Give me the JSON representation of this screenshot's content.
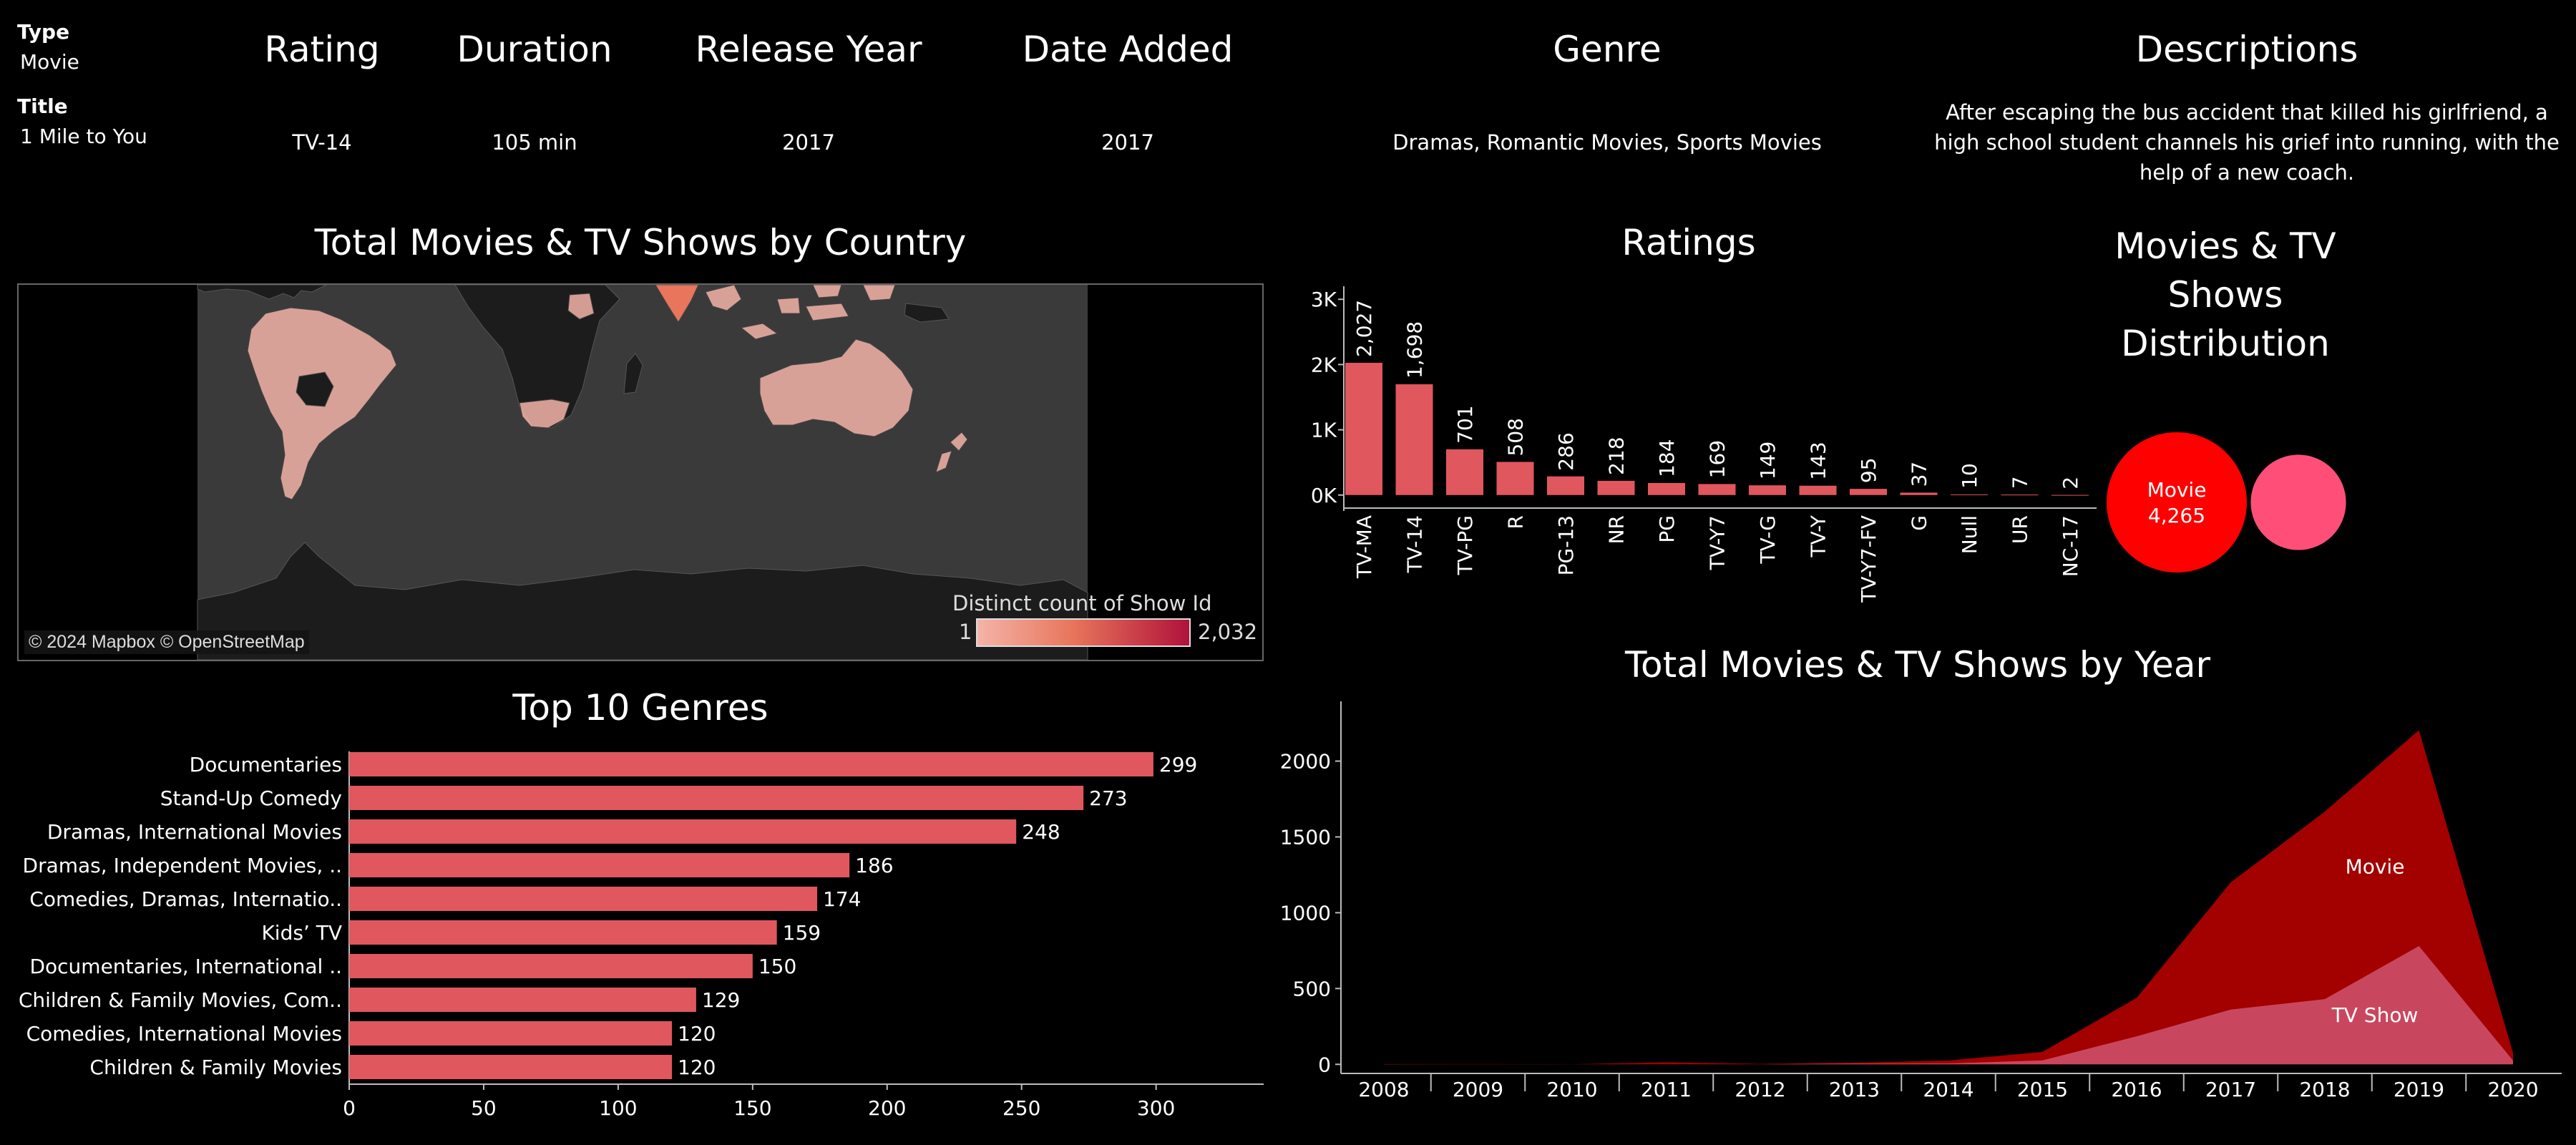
{
  "header": {
    "type_label": "Type",
    "type_value": "Movie",
    "title_label": "Title",
    "title_value": "1 Mile to You",
    "rating_header": "Rating",
    "rating_value": "TV-14",
    "duration_header": "Duration",
    "duration_value": "105 min",
    "release_header": "Release Year",
    "release_value": "2017",
    "date_added_header": "Date Added",
    "date_added_value": "2017",
    "genre_header": "Genre",
    "genre_value": "Dramas, Romantic Movies, Sports Movies",
    "desc_header": "Descriptions",
    "desc_line1": "After escaping the bus accident that killed his girlfriend, a",
    "desc_line2": "high school student channels his grief into running, with the",
    "desc_line3": "help of a new coach."
  },
  "map": {
    "title": "Total Movies & TV Shows by Country",
    "credit": "© 2024 Mapbox © OpenStreetMap",
    "legend_title": "Distinct count of Show Id",
    "legend_min": "1",
    "legend_max": "2,032",
    "ocean_color": "#3a3a3a",
    "land_color": "#1c1c1c",
    "low_color": "#f4b4a8",
    "high_color": "#b0123a"
  },
  "colors": {
    "bar": "#e0575e",
    "movie_area": "#a30000",
    "tv_area": "#d0536e",
    "movie_bubble": "#ff0000",
    "tv_bubble": "#ff4f79"
  },
  "chart_data": [
    {
      "id": "ratings",
      "type": "bar",
      "title": "Ratings",
      "categories": [
        "TV-MA",
        "TV-14",
        "TV-PG",
        "R",
        "PG-13",
        "NR",
        "PG",
        "TV-Y7",
        "TV-G",
        "TV-Y",
        "TV-Y7-FV",
        "G",
        "Null",
        "UR",
        "NC-17"
      ],
      "values": [
        2027,
        1698,
        701,
        508,
        286,
        218,
        184,
        169,
        149,
        143,
        95,
        37,
        10,
        7,
        2
      ],
      "value_labels": [
        "2,027",
        "1,698",
        "701",
        "508",
        "286",
        "218",
        "184",
        "169",
        "149",
        "143",
        "95",
        "37",
        "10",
        "7",
        "2"
      ],
      "yticks": [
        0,
        1000,
        2000,
        3000
      ],
      "ytick_labels": [
        "0K",
        "1K",
        "2K",
        "3K"
      ],
      "ylim": [
        -200,
        3200
      ]
    },
    {
      "id": "distribution",
      "type": "bubble",
      "title_lines": [
        "Movies & TV",
        "Shows",
        "Distribution"
      ],
      "items": [
        {
          "name": "Movie",
          "value": 4265,
          "label": "4,265"
        },
        {
          "name": "TV Show",
          "value": 1970,
          "label": ""
        }
      ]
    },
    {
      "id": "genres",
      "type": "bar",
      "orientation": "horizontal",
      "title": "Top 10 Genres",
      "categories": [
        "Documentaries",
        "Stand-Up Comedy",
        "Dramas, International Movies",
        "Dramas, Independent Movies, ..",
        "Comedies, Dramas, Internatio..",
        "Kids’ TV",
        "Documentaries, International ..",
        "Children & Family Movies, Com..",
        "Comedies, International Movies",
        "Children & Family Movies"
      ],
      "values": [
        299,
        273,
        248,
        186,
        174,
        159,
        150,
        129,
        120,
        120
      ],
      "xticks": [
        0,
        50,
        100,
        150,
        200,
        250,
        300
      ],
      "xlim": [
        0,
        340
      ]
    },
    {
      "id": "years",
      "type": "area",
      "title": "Total Movies & TV Shows by Year",
      "x": [
        "2008",
        "2009",
        "2010",
        "2011",
        "2012",
        "2013",
        "2014",
        "2015",
        "2016",
        "2017",
        "2018",
        "2019",
        "2020"
      ],
      "series": [
        {
          "name": "Movie",
          "values": [
            1,
            2,
            1,
            13,
            3,
            6,
            19,
            56,
            253,
            839,
            1237,
            1424,
            50
          ]
        },
        {
          "name": "TV Show",
          "values": [
            1,
            0,
            0,
            0,
            0,
            5,
            6,
            26,
            185,
            361,
            430,
            780,
            25
          ]
        }
      ],
      "stacked": true,
      "yticks": [
        0,
        500,
        1000,
        1500,
        2000
      ],
      "ylim": [
        -60,
        2300
      ]
    }
  ]
}
